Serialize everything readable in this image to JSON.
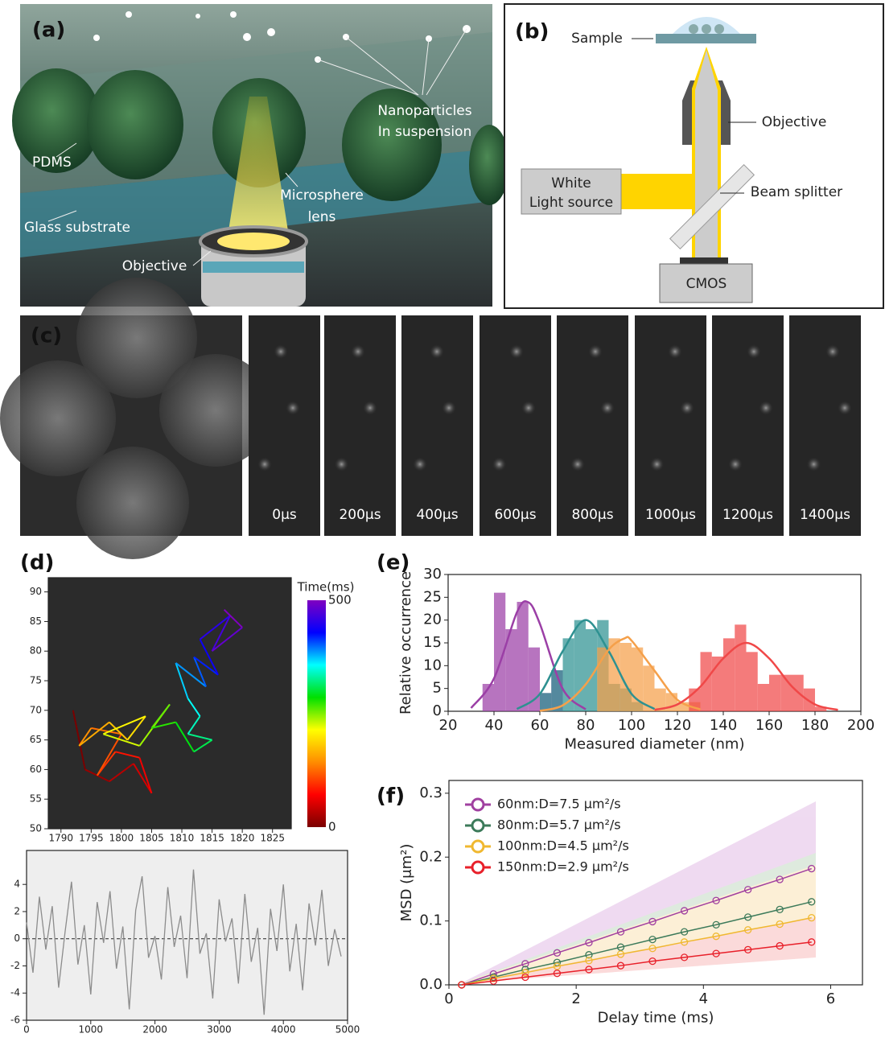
{
  "panels": {
    "a": {
      "label": "(a)",
      "annotations": [
        "Nanoparticles",
        "In suspension",
        "PDMS",
        "Microsphere",
        "lens",
        "Glass substrate",
        "Objective"
      ]
    },
    "b": {
      "label": "(b)",
      "annotations": [
        "Sample",
        "Objective",
        "White",
        "Light source",
        "Beam splitter",
        "CMOS"
      ]
    },
    "c": {
      "label": "(c)",
      "frames": [
        "0μs",
        "200μs",
        "400μs",
        "600μs",
        "800μs",
        "1000μs",
        "1200μs",
        "1400μs"
      ]
    },
    "d": {
      "label": "(d)"
    },
    "e": {
      "label": "(e)"
    },
    "f": {
      "label": "(f)"
    }
  },
  "chart_data": [
    {
      "type": "line",
      "x": [
        1792,
        1794,
        1798,
        1802,
        1805,
        1803,
        1799,
        1796,
        1800,
        1795,
        1793,
        1798,
        1801,
        1804,
        1797,
        1803,
        1808,
        1805,
        1809,
        1812,
        1815,
        1811,
        1813,
        1811,
        1809,
        1814,
        1812,
        1816,
        1813,
        1818,
        1815,
        1820,
        1817
      ],
      "values": [
        70,
        60,
        58,
        61,
        56,
        62,
        63,
        59,
        66,
        67,
        64,
        68,
        65,
        69,
        66,
        64,
        71,
        67,
        68,
        63,
        65,
        66,
        69,
        72,
        78,
        74,
        79,
        76,
        82,
        86,
        80,
        84,
        87
      ],
      "xlim": [
        1787.9,
        1828.1
      ],
      "xticks": [
        1790,
        1795,
        1800,
        1805,
        1810,
        1815,
        1820,
        1825
      ],
      "ylim": [
        50,
        92.4
      ],
      "yticks": [
        50,
        55,
        60,
        65,
        70,
        75,
        80,
        85,
        90
      ],
      "colorbar": {
        "title": "Time(ms)",
        "ticks": [
          0,
          500
        ],
        "colors": [
          "#7a0000",
          "#ff0000",
          "#ff8c00",
          "#ffff00",
          "#00e000",
          "#00ffff",
          "#0000ff",
          "#8000c0"
        ]
      }
    },
    {
      "type": "line",
      "color": "#8c8c8c",
      "x": [
        0,
        100,
        200,
        300,
        400,
        500,
        600,
        700,
        800,
        900,
        1000,
        1100,
        1200,
        1300,
        1400,
        1500,
        1600,
        1700,
        1800,
        1900,
        2000,
        2100,
        2200,
        2300,
        2400,
        2500,
        2600,
        2700,
        2800,
        2900,
        3000,
        3100,
        3200,
        3300,
        3400,
        3500,
        3600,
        3700,
        3800,
        3900,
        4000,
        4100,
        4200,
        4300,
        4400,
        4500,
        4600,
        4700,
        4800,
        4900
      ],
      "values": [
        1.2,
        -2.5,
        3.1,
        -0.8,
        2.4,
        -3.6,
        0.5,
        4.2,
        -1.9,
        1.0,
        -4.1,
        2.7,
        -0.3,
        3.5,
        -2.2,
        0.9,
        -5.2,
        2.1,
        4.6,
        -1.4,
        0.2,
        -3.0,
        3.8,
        -0.6,
        1.7,
        -2.9,
        5.1,
        -1.1,
        0.4,
        -4.4,
        2.9,
        -0.2,
        1.5,
        -3.3,
        3.3,
        -1.7,
        0.8,
        -5.6,
        2.2,
        -0.9,
        4.0,
        -2.4,
        1.1,
        -3.8,
        2.6,
        -0.5,
        3.6,
        -2.0,
        0.7,
        -1.3
      ],
      "reference_line": 0,
      "xlim": [
        0,
        5000
      ],
      "xticks": [
        0,
        1000,
        2000,
        3000,
        4000,
        5000
      ],
      "ylim": [
        -6,
        6.5
      ],
      "yticks": [
        -6,
        -4,
        -2,
        0,
        2,
        4
      ]
    },
    {
      "type": "histogram",
      "x_label": "Measured diameter (nm)",
      "y_label": "Relative occurrence",
      "series": [
        {
          "color": "#9b3fa6",
          "bins": [
            35,
            40,
            45,
            50,
            55,
            60,
            65,
            70
          ],
          "values": [
            6,
            26,
            18,
            24,
            14,
            4,
            9
          ],
          "fit_x": [
            30,
            40,
            50,
            55,
            60,
            70,
            80
          ],
          "fit_values": [
            0.7,
            7.2,
            21.7,
            23.9,
            19.2,
            4.9,
            0.4
          ]
        },
        {
          "color": "#2e9191",
          "bins": [
            60,
            65,
            70,
            75,
            80,
            85,
            90,
            95,
            100,
            105
          ],
          "values": [
            4,
            9,
            16,
            20,
            18,
            20,
            6,
            5,
            2
          ],
          "fit_x": [
            50,
            60,
            70,
            80,
            90,
            100,
            110
          ],
          "fit_values": [
            0.5,
            3.8,
            13.2,
            20,
            13.2,
            3.8,
            0.5
          ]
        },
        {
          "color": "#f5a04a",
          "bins": [
            85,
            90,
            95,
            100,
            105,
            110,
            115,
            120,
            125,
            130
          ],
          "values": [
            14,
            16,
            15,
            14,
            10,
            5,
            4,
            2,
            2
          ],
          "fit_x": [
            60,
            70,
            80,
            90,
            97,
            100,
            110,
            120,
            130
          ],
          "fit_values": [
            0.1,
            1.3,
            5.9,
            13.5,
            16,
            15.5,
            8.9,
            2.5,
            0.4
          ]
        },
        {
          "color": "#f04848",
          "bins": [
            125,
            130,
            135,
            140,
            145,
            150,
            155,
            160,
            165,
            170,
            175,
            180,
            185
          ],
          "values": [
            5,
            13,
            12,
            16,
            19,
            13,
            6,
            8,
            8,
            8,
            5,
            1
          ],
          "fit_x": [
            110,
            120,
            130,
            140,
            150,
            160,
            170,
            180,
            190
          ],
          "fit_values": [
            0.3,
            1.5,
            5.4,
            11.6,
            15,
            11.6,
            5.4,
            1.5,
            0.3
          ]
        }
      ],
      "xlim": [
        20,
        200
      ],
      "xticks": [
        20,
        40,
        60,
        80,
        100,
        120,
        140,
        160,
        180,
        200
      ],
      "ylim": [
        0,
        30
      ],
      "yticks": [
        0,
        5,
        10,
        15,
        20,
        25,
        30
      ]
    },
    {
      "type": "line",
      "x_label": "Delay time (ms)",
      "y_label": "MSD (μm²)",
      "x": [
        0.2,
        0.7,
        1.2,
        1.7,
        2.2,
        2.7,
        3.2,
        3.7,
        4.2,
        4.7,
        5.2,
        5.7
      ],
      "series": [
        {
          "name": "60nm:D=7.5 μm²/s",
          "color": "#a040a0",
          "values": [
            0,
            0.017,
            0.033,
            0.05,
            0.066,
            0.083,
            0.099,
            0.116,
            0.132,
            0.149,
            0.165,
            0.182
          ]
        },
        {
          "name": "80nm:D=5.7 μm²/s",
          "color": "#3c7a5a",
          "values": [
            0,
            0.012,
            0.024,
            0.035,
            0.047,
            0.059,
            0.071,
            0.083,
            0.094,
            0.106,
            0.118,
            0.13
          ]
        },
        {
          "name": "100nm:D=4.5 μm²/s",
          "color": "#f0b830",
          "values": [
            0,
            0.01,
            0.019,
            0.029,
            0.038,
            0.048,
            0.057,
            0.067,
            0.076,
            0.086,
            0.095,
            0.105
          ]
        },
        {
          "name": "150nm:D=2.9 μm²/s",
          "color": "#e8202a",
          "values": [
            0,
            0.006,
            0.012,
            0.018,
            0.024,
            0.03,
            0.037,
            0.043,
            0.049,
            0.055,
            0.061,
            0.067
          ]
        }
      ],
      "xlim": [
        0,
        6.5
      ],
      "xticks": [
        0,
        2,
        4,
        6
      ],
      "ylim": [
        0,
        0.32
      ],
      "yticks": [
        {
          "value": 0,
          "label": "0.0"
        },
        0.1,
        0.2,
        0.3
      ]
    }
  ]
}
